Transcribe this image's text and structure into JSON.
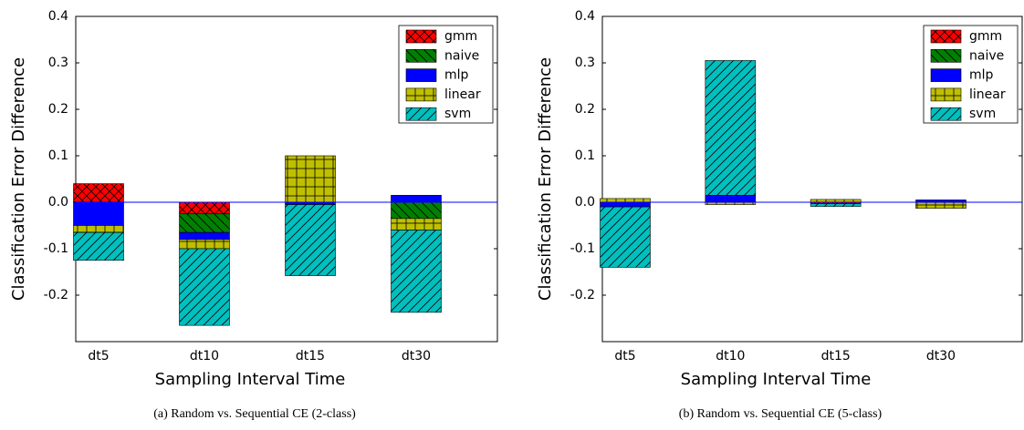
{
  "chart_data": [
    {
      "type": "bar",
      "stacked": true,
      "caption": "(a) Random vs. Sequential CE (2-class)",
      "xlabel": "Sampling Interval Time",
      "ylabel": "Classification Error Difference",
      "categories": [
        "dt5",
        "dt10",
        "dt15",
        "dt30"
      ],
      "series": [
        {
          "name": "gmm",
          "color": "#ff0000",
          "hatch": "xx",
          "values": [
            0.04,
            -0.025,
            0,
            0
          ]
        },
        {
          "name": "naive",
          "color": "#008000",
          "hatch": "\\",
          "values": [
            0,
            -0.04,
            0,
            -0.035
          ]
        },
        {
          "name": "mlp",
          "color": "#0000ff",
          "hatch": "",
          "values": [
            -0.05,
            -0.015,
            -0.005,
            0.015
          ]
        },
        {
          "name": "linear",
          "color": "#bfbf00",
          "hatch": "+",
          "values": [
            -0.015,
            -0.02,
            0.1,
            -0.025
          ]
        },
        {
          "name": "svm",
          "color": "#00bfbf",
          "hatch": "/",
          "values": [
            -0.06,
            -0.165,
            -0.153,
            -0.177
          ]
        }
      ],
      "ylim": [
        -0.3,
        0.4
      ],
      "yticks": [
        -0.2,
        -0.1,
        {
          "value": 0,
          "label": "0.0"
        },
        0.1,
        0.2,
        0.3,
        0.4
      ],
      "legend": "upper right"
    },
    {
      "type": "bar",
      "stacked": true,
      "caption": "(b) Random vs. Sequential CE (5-class)",
      "xlabel": "Sampling Interval Time",
      "ylabel": "Classification Error Difference",
      "categories": [
        "dt5",
        "dt10",
        "dt15",
        "dt30"
      ],
      "series": [
        {
          "name": "gmm",
          "color": "#ff0000",
          "hatch": "xx",
          "values": [
            0,
            0,
            -0.003,
            0
          ]
        },
        {
          "name": "naive",
          "color": "#008000",
          "hatch": "\\",
          "values": [
            0,
            0,
            0,
            0
          ]
        },
        {
          "name": "mlp",
          "color": "#0000ff",
          "hatch": "",
          "values": [
            -0.01,
            0.015,
            0,
            0.005
          ]
        },
        {
          "name": "linear",
          "color": "#bfbf00",
          "hatch": "+",
          "values": [
            0.008,
            -0.005,
            0.006,
            -0.013
          ]
        },
        {
          "name": "svm",
          "color": "#00bfbf",
          "hatch": "/",
          "values": [
            -0.13,
            0.29,
            -0.006,
            0
          ]
        }
      ],
      "ylim": [
        -0.3,
        0.4
      ],
      "yticks": [
        -0.2,
        -0.1,
        {
          "value": 0,
          "label": "0.0"
        },
        0.1,
        0.2,
        0.3,
        0.4
      ],
      "legend": "upper right"
    }
  ]
}
